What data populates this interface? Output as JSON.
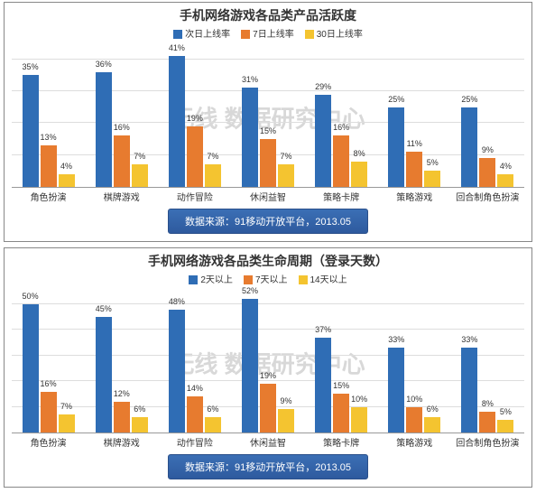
{
  "watermark_text": "无线 数据研究中心",
  "source_text": "数据来源：91移动开放平台，2013.05",
  "charts": [
    {
      "title": "手机网络游戏各品类产品活跃度",
      "type": "bar",
      "ylim_max": 45,
      "grid_step": 10,
      "series": [
        {
          "name": "次日上线率",
          "color": "#2f6db5"
        },
        {
          "name": "7日上线率",
          "color": "#e77b2f"
        },
        {
          "name": "30日上线率",
          "color": "#f4c430"
        }
      ],
      "categories": [
        "角色扮演",
        "棋牌游戏",
        "动作冒险",
        "休闲益智",
        "策略卡牌",
        "策略游戏",
        "回合制角色扮演"
      ],
      "data": [
        [
          35,
          13,
          4
        ],
        [
          36,
          16,
          7
        ],
        [
          41,
          19,
          7
        ],
        [
          31,
          15,
          7
        ],
        [
          29,
          16,
          8
        ],
        [
          25,
          11,
          5
        ],
        [
          25,
          9,
          4
        ]
      ]
    },
    {
      "title": "手机网络游戏各品类生命周期（登录天数）",
      "type": "bar",
      "ylim_max": 56,
      "grid_step": 10,
      "series": [
        {
          "name": "2天以上",
          "color": "#2f6db5"
        },
        {
          "name": "7天以上",
          "color": "#e77b2f"
        },
        {
          "name": "14天以上",
          "color": "#f4c430"
        }
      ],
      "categories": [
        "角色扮演",
        "棋牌游戏",
        "动作冒险",
        "休闲益智",
        "策略卡牌",
        "策略游戏",
        "回合制角色扮演"
      ],
      "data": [
        [
          50,
          16,
          7
        ],
        [
          45,
          12,
          6
        ],
        [
          48,
          14,
          6
        ],
        [
          52,
          19,
          9
        ],
        [
          37,
          15,
          10
        ],
        [
          33,
          10,
          6
        ],
        [
          33,
          8,
          5
        ]
      ]
    }
  ]
}
